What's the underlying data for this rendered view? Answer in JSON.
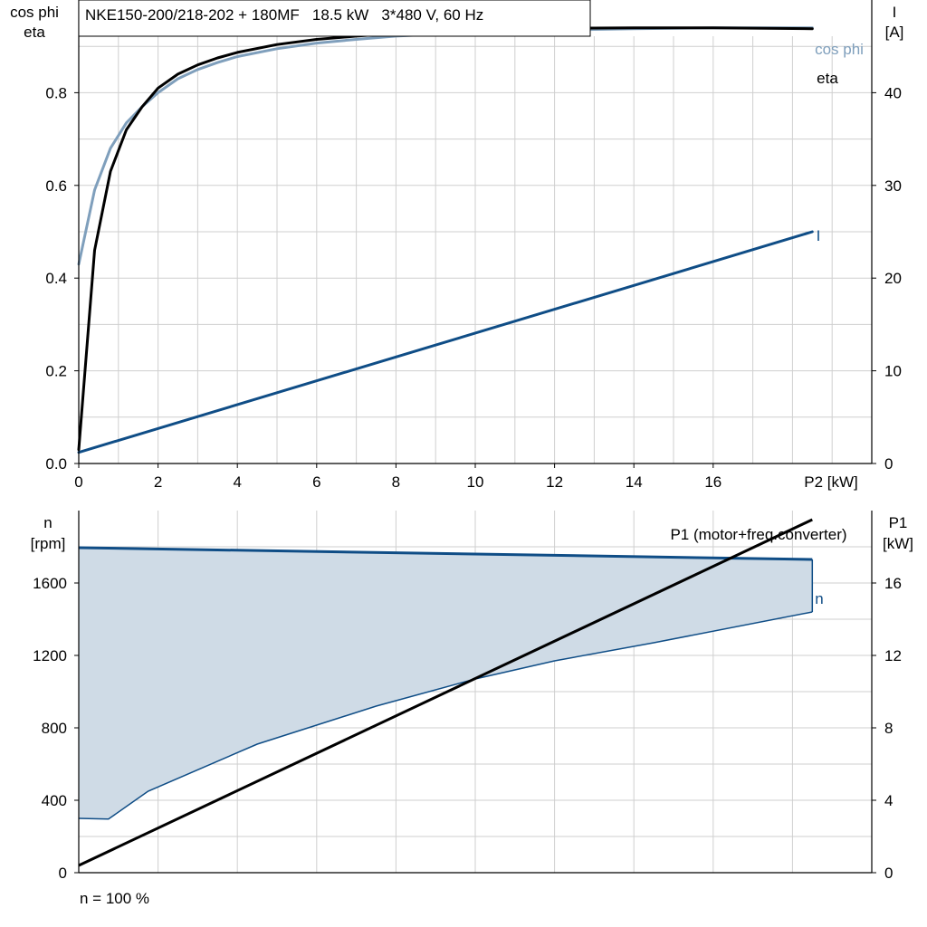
{
  "figure": {
    "header": "NKE150-200/218-202 + 180MF   18.5 kW   3*480 V, 60 Hz",
    "footnote": "n = 100 %"
  },
  "colors": {
    "cosphi": "#7f9fbc",
    "eta": "#000000",
    "current": "#0f4d86",
    "speed": "#0f4d86",
    "speed_band_fill": "#cfdbe6",
    "p1": "#000000",
    "grid": "#cfcfcf"
  },
  "chart_data": [
    {
      "type": "line",
      "xlabel": "P2 [kW]",
      "ylabel_left": "cos phi\neta",
      "ylabel_right": "I\n[A]",
      "xlim": [
        0,
        20
      ],
      "xticks": [
        0,
        2,
        4,
        6,
        8,
        10,
        12,
        14,
        16
      ],
      "ylim_left": [
        0,
        1
      ],
      "yticks_left": [
        0.0,
        0.2,
        0.4,
        0.6,
        0.8
      ],
      "ytick_labels_left": [
        "0.0",
        "0.2",
        "0.4",
        "0.6",
        "0.8"
      ],
      "ylim_right": [
        0,
        50
      ],
      "yticks_right": [
        0,
        10,
        20,
        30,
        40
      ],
      "grid": true,
      "series": [
        {
          "name": "cos phi",
          "axis": "left",
          "x": [
            0,
            0.4,
            0.8,
            1.2,
            1.6,
            2,
            2.5,
            3,
            3.5,
            4,
            5,
            6,
            7,
            8,
            10,
            12,
            14,
            16,
            18.5
          ],
          "y": [
            0.43,
            0.59,
            0.68,
            0.735,
            0.77,
            0.8,
            0.83,
            0.85,
            0.865,
            0.878,
            0.895,
            0.907,
            0.915,
            0.922,
            0.93,
            0.935,
            0.938,
            0.94,
            0.94
          ]
        },
        {
          "name": "eta",
          "axis": "left",
          "x": [
            0,
            0.4,
            0.8,
            1.2,
            1.6,
            2,
            2.5,
            3,
            3.5,
            4,
            5,
            6,
            7,
            8,
            10,
            12,
            14,
            16,
            18.5
          ],
          "y": [
            0.03,
            0.46,
            0.63,
            0.72,
            0.77,
            0.81,
            0.84,
            0.86,
            0.875,
            0.887,
            0.904,
            0.915,
            0.922,
            0.928,
            0.935,
            0.939,
            0.94,
            0.94,
            0.938
          ]
        },
        {
          "name": "I",
          "axis": "right",
          "x": [
            0,
            18.5
          ],
          "y": [
            1.2,
            25
          ]
        }
      ]
    },
    {
      "type": "line",
      "ylabel_left": "n\n[rpm]",
      "ylabel_right": "P1\n[kW]",
      "xlim": [
        0,
        20
      ],
      "ylim_left": [
        0,
        2000
      ],
      "yticks_left": [
        0,
        400,
        800,
        1200,
        1600
      ],
      "ylim_right": [
        0,
        20
      ],
      "yticks_right": [
        0,
        4,
        8,
        12,
        16
      ],
      "grid": true,
      "series": [
        {
          "name": "n",
          "axis": "left",
          "x": [
            0,
            18.5
          ],
          "y": [
            1795,
            1730
          ]
        },
        {
          "name": "n_min",
          "axis": "left",
          "x": [
            0,
            0.75,
            1.75,
            4.5,
            7.5,
            10,
            12,
            14.5,
            18.5
          ],
          "y": [
            300,
            296,
            450,
            710,
            920,
            1070,
            1170,
            1270,
            1440
          ]
        },
        {
          "name": "P1 (motor+freq.converter)",
          "axis": "right",
          "x": [
            0,
            18.5
          ],
          "y": [
            0.4,
            19.5
          ]
        }
      ]
    }
  ]
}
